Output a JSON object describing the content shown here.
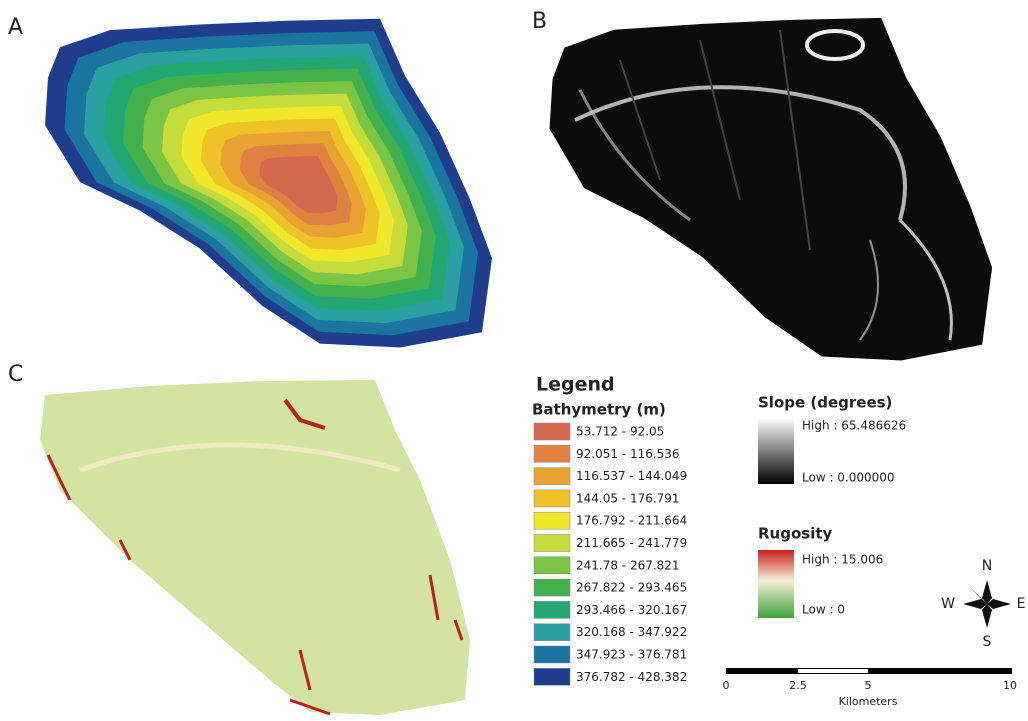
{
  "panels": {
    "a": "A",
    "b": "B",
    "c": "C"
  },
  "legend": {
    "title": "Legend",
    "bathymetry": {
      "title": "Bathymetry (m)",
      "classes": [
        {
          "label": "53.712 - 92.05",
          "color": "#d4694f"
        },
        {
          "label": "92.051 - 116.536",
          "color": "#df8140"
        },
        {
          "label": "116.537 - 144.049",
          "color": "#e8a232"
        },
        {
          "label": "144.05 - 176.791",
          "color": "#eec328"
        },
        {
          "label": "176.792 - 211.664",
          "color": "#f0e62a"
        },
        {
          "label": "211.665 - 241.779",
          "color": "#c6dc3a"
        },
        {
          "label": "241.78 - 267.821",
          "color": "#7cc444"
        },
        {
          "label": "267.822 - 293.465",
          "color": "#43b04d"
        },
        {
          "label": "293.466 - 320.167",
          "color": "#24a773"
        },
        {
          "label": "320.168 - 347.922",
          "color": "#2aa1a0"
        },
        {
          "label": "347.923 - 376.781",
          "color": "#1c74a0"
        },
        {
          "label": "376.782 - 428.382",
          "color": "#1e3e8c"
        }
      ]
    },
    "slope": {
      "title": "Slope (degrees)",
      "high": "High : 65.486626",
      "low": "Low : 0.000000"
    },
    "rugosity": {
      "title": "Rugosity",
      "high": "High : 15.006",
      "low": "Low : 0"
    }
  },
  "compass": {
    "n": "N",
    "s": "S",
    "e": "E",
    "w": "W"
  },
  "scale_bar": {
    "ticks": [
      "0",
      "2.5",
      "5",
      "10"
    ],
    "unit": "Kilometers"
  }
}
